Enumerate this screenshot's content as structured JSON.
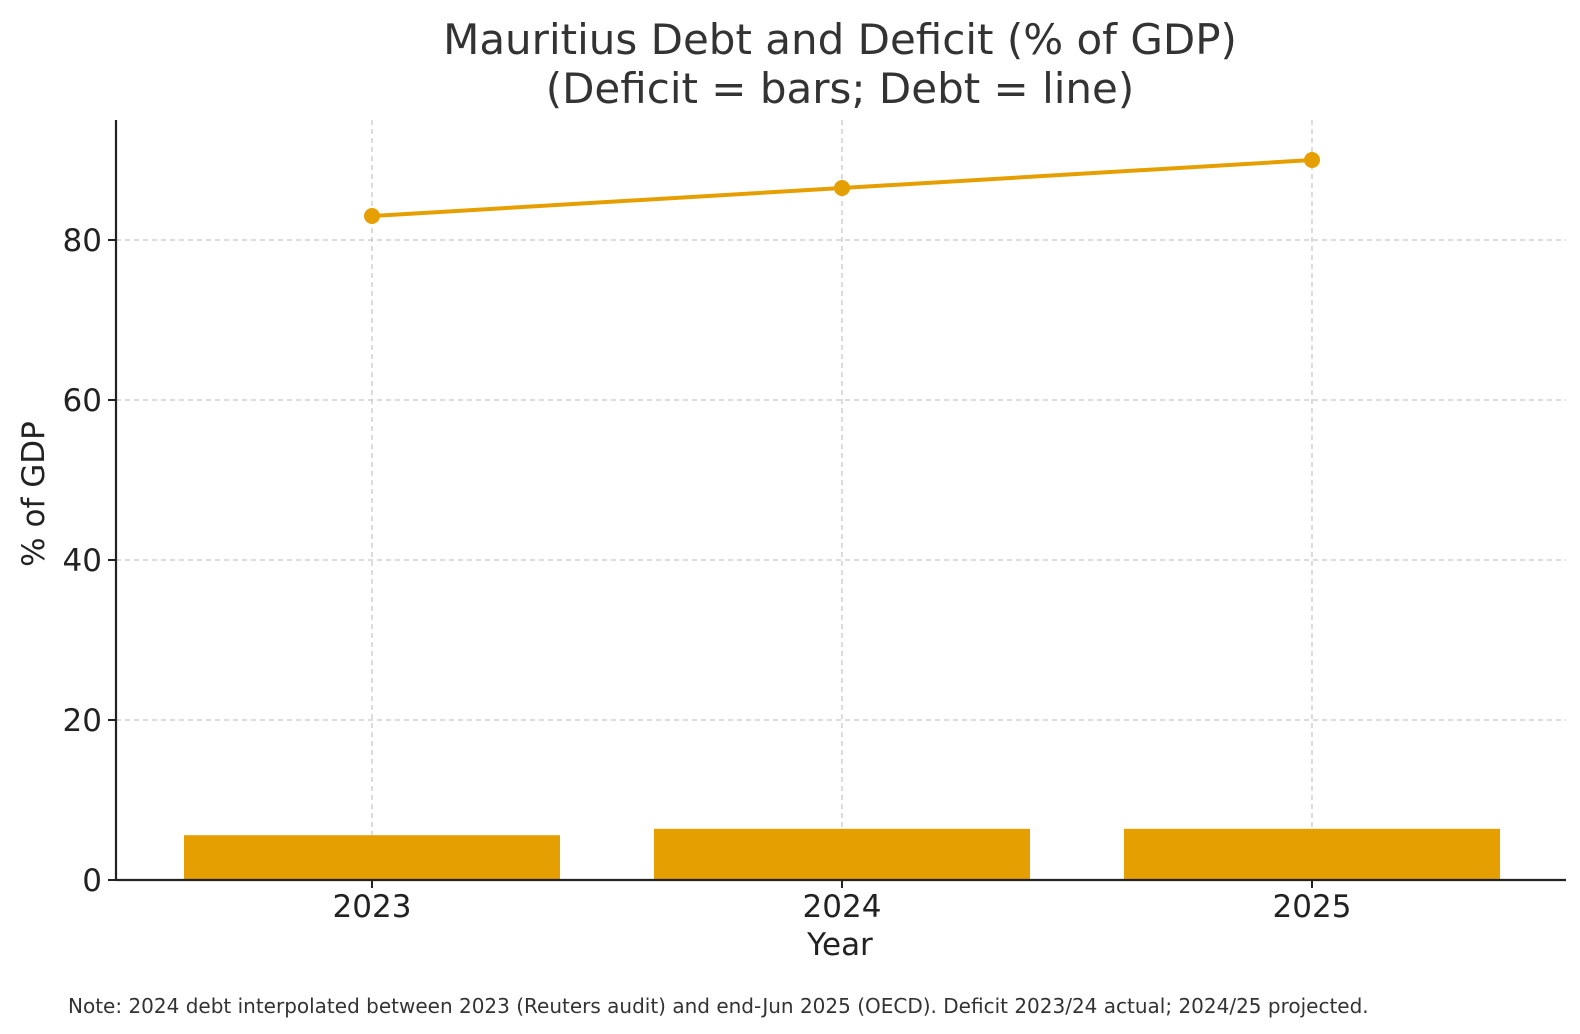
{
  "chart_data": {
    "type": "bar",
    "title_lines": [
      "Mauritius Debt and Deficit (% of GDP)",
      "(Deficit = bars; Debt = line)"
    ],
    "xlabel": "Year",
    "ylabel": "% of GDP",
    "categories": [
      "2023",
      "2024",
      "2025"
    ],
    "series": [
      {
        "kind": "bar",
        "values": [
          5.6,
          6.4,
          6.4
        ],
        "color": "#E69F00"
      },
      {
        "kind": "line",
        "marker": "circle",
        "values": [
          83.0,
          86.5,
          90.0
        ],
        "color": "#E69F00"
      }
    ],
    "ylim": [
      0,
      95
    ],
    "yticks": [
      0,
      20,
      40,
      60,
      80
    ],
    "grid": true,
    "legend": "none",
    "note": "Note: 2024 debt interpolated between 2023 (Reuters audit) and end-Jun 2025 (OECD). Deficit 2023/24 actual; 2024/25 projected."
  }
}
